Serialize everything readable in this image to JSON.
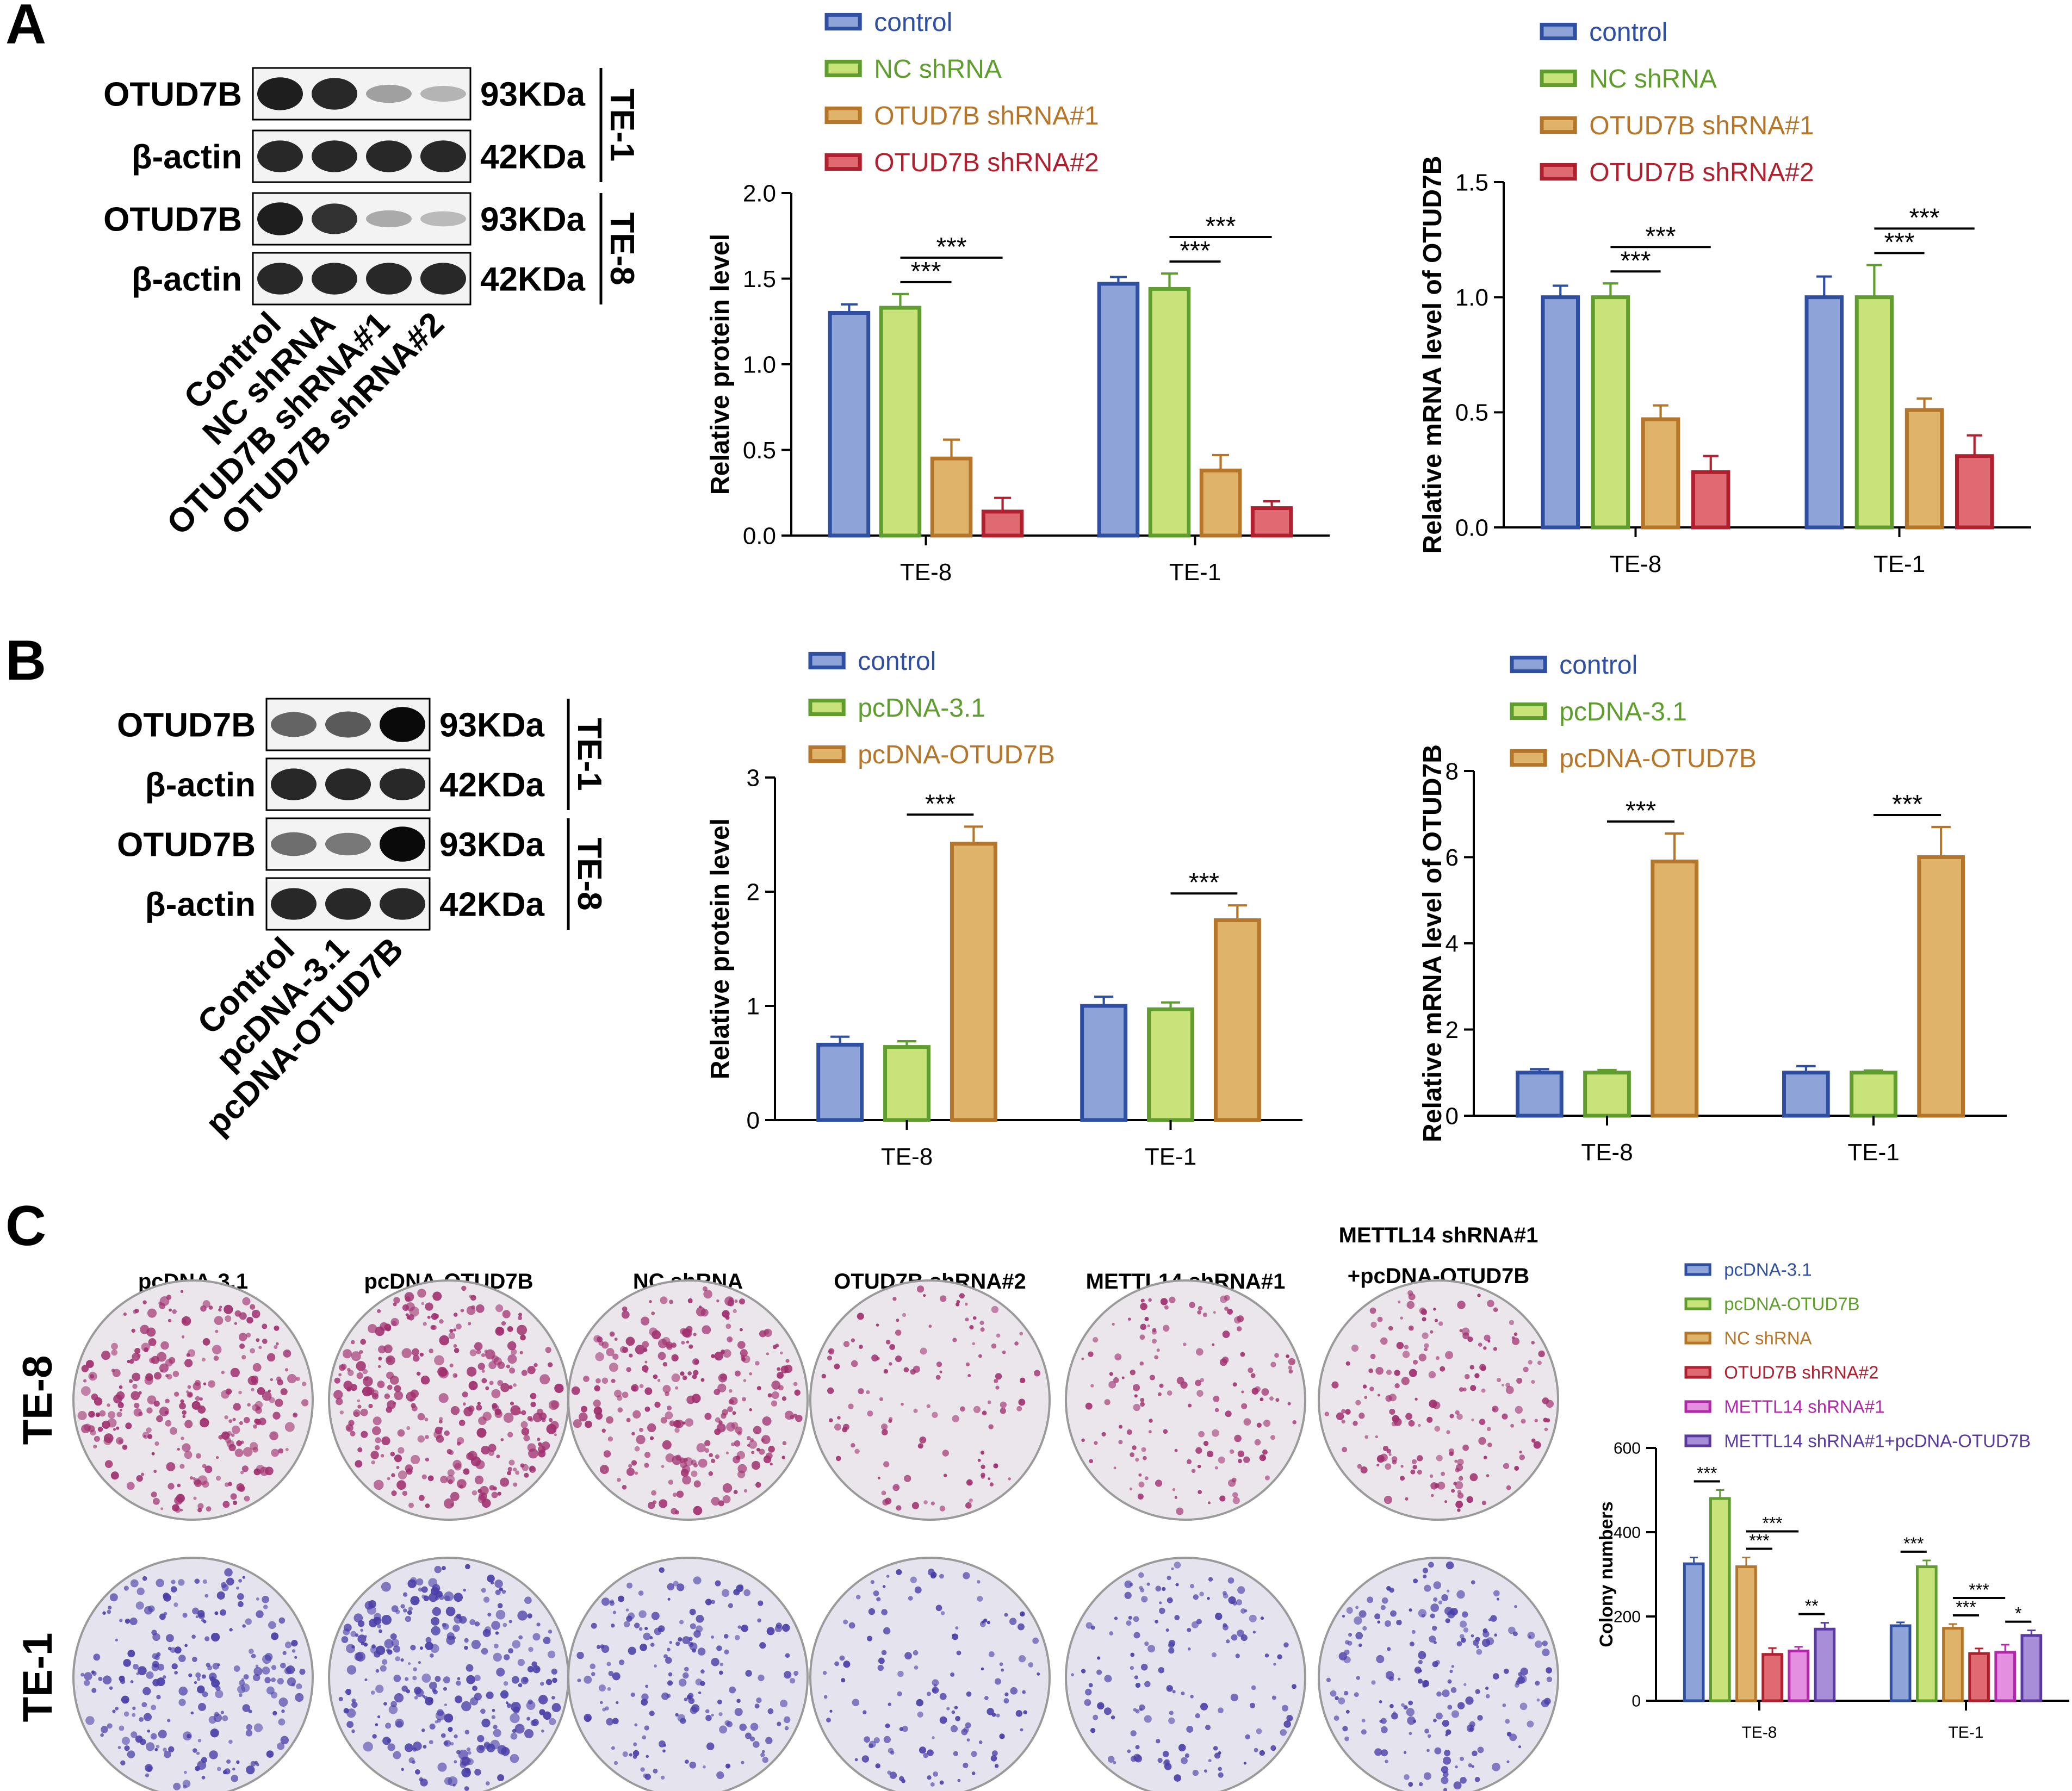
{
  "panels": [
    {
      "letter": "A"
    },
    {
      "letter": "B"
    },
    {
      "letter": "C"
    }
  ],
  "colors": {
    "control": {
      "fill": "#8ea4d8",
      "stroke": "#2f4fa3"
    },
    "nc": {
      "fill": "#c8e37a",
      "stroke": "#5f9e2e"
    },
    "sh1": {
      "fill": "#e0b36a",
      "stroke": "#b5762a"
    },
    "sh2": {
      "fill": "#e06a72",
      "stroke": "#b0202e"
    },
    "mettl": {
      "fill": "#e48fe0",
      "stroke": "#b02aa8"
    },
    "combo": {
      "fill": "#a88ed8",
      "stroke": "#5a3aa0"
    },
    "text_control": "#2f4fa3",
    "text_nc": "#5f9e2e",
    "text_sh1": "#b5762a",
    "text_sh2": "#b0202e",
    "text_mettl": "#b02aa8",
    "text_combo": "#5a3aa0",
    "dish_te8": "#a0306e",
    "dish_te1": "#4a3fa8"
  },
  "blots": [
    {
      "rows": [
        {
          "protein": "OTUD7B",
          "size": "93KDa",
          "intensities": [
            0.9,
            0.85,
            0.25,
            0.15
          ]
        },
        {
          "protein": "β-actin",
          "size": "42KDa",
          "intensities": [
            0.85,
            0.85,
            0.85,
            0.85
          ]
        },
        {
          "protein": "OTUD7B",
          "size": "93KDa",
          "intensities": [
            0.9,
            0.8,
            0.2,
            0.12
          ]
        },
        {
          "protein": "β-actin",
          "size": "42KDa",
          "intensities": [
            0.85,
            0.85,
            0.85,
            0.85
          ]
        }
      ],
      "cell_lines": [
        "TE-1",
        "TE-8"
      ],
      "lanes": [
        "Control",
        "NC shRNA",
        "OTUD7B shRNA#1",
        "OTUD7B shRNA#2"
      ]
    },
    {
      "rows": [
        {
          "protein": "OTUD7B",
          "size": "93KDa",
          "intensities": [
            0.55,
            0.6,
            1.0
          ]
        },
        {
          "protein": "β-actin",
          "size": "42KDa",
          "intensities": [
            0.85,
            0.85,
            0.85
          ]
        },
        {
          "protein": "OTUD7B",
          "size": "93KDa",
          "intensities": [
            0.5,
            0.45,
            1.0
          ]
        },
        {
          "protein": "β-actin",
          "size": "42KDa",
          "intensities": [
            0.85,
            0.85,
            0.85
          ]
        }
      ],
      "cell_lines": [
        "TE-1",
        "TE-8"
      ],
      "lanes": [
        "Control",
        "pcDNA-3.1",
        "pcDNA-OTUD7B"
      ]
    }
  ],
  "chart_data": [
    {
      "type": "bar",
      "ylabel": "Relative protein level",
      "categories": [
        "TE-8",
        "TE-1"
      ],
      "ylim": [
        0,
        2.0
      ],
      "yticks": [
        "0.0",
        "0.5",
        "1.0",
        "1.5",
        "2.0"
      ],
      "series": [
        {
          "name": "control",
          "color": "control",
          "values": [
            1.3,
            1.47
          ],
          "errors": [
            0.05,
            0.04
          ]
        },
        {
          "name": "NC shRNA",
          "color": "nc",
          "values": [
            1.33,
            1.44
          ],
          "errors": [
            0.08,
            0.09
          ]
        },
        {
          "name": "OTUD7B shRNA#1",
          "color": "sh1",
          "values": [
            0.45,
            0.38
          ],
          "errors": [
            0.11,
            0.09
          ]
        },
        {
          "name": "OTUD7B shRNA#2",
          "color": "sh2",
          "values": [
            0.14,
            0.16
          ],
          "errors": [
            0.08,
            0.04
          ]
        }
      ],
      "significance": [
        {
          "group": 0,
          "from": 1,
          "to": 2,
          "label": "***"
        },
        {
          "group": 0,
          "from": 1,
          "to": 3,
          "label": "***"
        },
        {
          "group": 1,
          "from": 1,
          "to": 2,
          "label": "***"
        },
        {
          "group": 1,
          "from": 1,
          "to": 3,
          "label": "***"
        }
      ]
    },
    {
      "type": "bar",
      "ylabel": "Relative mRNA level of OTUD7B",
      "categories": [
        "TE-8",
        "TE-1"
      ],
      "ylim": [
        0,
        1.5
      ],
      "yticks": [
        "0.0",
        "0.5",
        "1.0",
        "1.5"
      ],
      "series": [
        {
          "name": "control",
          "color": "control",
          "values": [
            1.0,
            1.0
          ],
          "errors": [
            0.05,
            0.09
          ]
        },
        {
          "name": "NC shRNA",
          "color": "nc",
          "values": [
            1.0,
            1.0
          ],
          "errors": [
            0.06,
            0.14
          ]
        },
        {
          "name": "OTUD7B shRNA#1",
          "color": "sh1",
          "values": [
            0.47,
            0.51
          ],
          "errors": [
            0.06,
            0.05
          ]
        },
        {
          "name": "OTUD7B shRNA#2",
          "color": "sh2",
          "values": [
            0.24,
            0.31
          ],
          "errors": [
            0.07,
            0.09
          ]
        }
      ],
      "significance": [
        {
          "group": 0,
          "from": 1,
          "to": 2,
          "label": "***"
        },
        {
          "group": 0,
          "from": 1,
          "to": 3,
          "label": "***"
        },
        {
          "group": 1,
          "from": 1,
          "to": 2,
          "label": "***"
        },
        {
          "group": 1,
          "from": 1,
          "to": 3,
          "label": "***"
        }
      ]
    },
    {
      "type": "bar",
      "ylabel": "Relative protein level",
      "categories": [
        "TE-8",
        "TE-1"
      ],
      "ylim": [
        0,
        3
      ],
      "yticks": [
        "0",
        "1",
        "2",
        "3"
      ],
      "series": [
        {
          "name": "control",
          "color": "control",
          "values": [
            0.66,
            1.0
          ],
          "errors": [
            0.07,
            0.08
          ]
        },
        {
          "name": "pcDNA-3.1",
          "color": "nc",
          "values": [
            0.64,
            0.97
          ],
          "errors": [
            0.05,
            0.06
          ]
        },
        {
          "name": "pcDNA-OTUD7B",
          "color": "sh1",
          "values": [
            2.42,
            1.75
          ],
          "errors": [
            0.15,
            0.13
          ]
        }
      ],
      "significance": [
        {
          "group": 0,
          "from": 1,
          "to": 2,
          "label": "***"
        },
        {
          "group": 1,
          "from": 1,
          "to": 2,
          "label": "***"
        }
      ]
    },
    {
      "type": "bar",
      "ylabel": "Relative mRNA level of OTUD7B",
      "categories": [
        "TE-8",
        "TE-1"
      ],
      "ylim": [
        0,
        8
      ],
      "yticks": [
        "0",
        "2",
        "4",
        "6",
        "8"
      ],
      "series": [
        {
          "name": "control",
          "color": "control",
          "values": [
            1.0,
            1.0
          ],
          "errors": [
            0.08,
            0.15
          ]
        },
        {
          "name": "pcDNA-3.1",
          "color": "nc",
          "values": [
            1.0,
            1.0
          ],
          "errors": [
            0.06,
            0.05
          ]
        },
        {
          "name": "pcDNA-OTUD7B",
          "color": "sh1",
          "values": [
            5.9,
            6.0
          ],
          "errors": [
            0.65,
            0.7
          ]
        }
      ],
      "significance": [
        {
          "group": 0,
          "from": 1,
          "to": 2,
          "label": "***"
        },
        {
          "group": 1,
          "from": 1,
          "to": 2,
          "label": "***"
        }
      ]
    },
    {
      "type": "bar",
      "ylabel": "Colony numbers",
      "categories": [
        "TE-8",
        "TE-1"
      ],
      "ylim": [
        0,
        600
      ],
      "yticks": [
        "0",
        "200",
        "400",
        "600"
      ],
      "series": [
        {
          "name": "pcDNA-3.1",
          "color": "control",
          "values": [
            325,
            178
          ],
          "errors": [
            15,
            8
          ]
        },
        {
          "name": "pcDNA-OTUD7B",
          "color": "nc",
          "values": [
            480,
            318
          ],
          "errors": [
            20,
            15
          ]
        },
        {
          "name": "NC shRNA",
          "color": "sh1",
          "values": [
            318,
            172
          ],
          "errors": [
            22,
            10
          ]
        },
        {
          "name": "OTUD7B shRNA#2",
          "color": "sh2",
          "values": [
            110,
            112
          ],
          "errors": [
            15,
            12
          ]
        },
        {
          "name": "METTL14 shRNA#1",
          "color": "mettl",
          "values": [
            118,
            115
          ],
          "errors": [
            10,
            18
          ]
        },
        {
          "name": "METTL14 shRNA#1+pcDNA-OTUD7B",
          "color": "combo",
          "values": [
            170,
            155
          ],
          "errors": [
            15,
            12
          ]
        }
      ],
      "significance": [
        {
          "group": 0,
          "from": 0,
          "to": 1,
          "label": "***"
        },
        {
          "group": 0,
          "from": 2,
          "to": 3,
          "label": "***"
        },
        {
          "group": 0,
          "from": 2,
          "to": 4,
          "label": "***"
        },
        {
          "group": 0,
          "from": 4,
          "to": 5,
          "label": "**"
        },
        {
          "group": 1,
          "from": 0,
          "to": 1,
          "label": "***"
        },
        {
          "group": 1,
          "from": 2,
          "to": 3,
          "label": "***"
        },
        {
          "group": 1,
          "from": 2,
          "to": 4,
          "label": "***"
        },
        {
          "group": 1,
          "from": 4,
          "to": 5,
          "label": "*"
        }
      ]
    }
  ],
  "colony": {
    "columns": [
      {
        "lines": [
          "pcDNA-3.1"
        ],
        "densities": [
          0.9,
          0.75
        ]
      },
      {
        "lines": [
          "pcDNA-OTUD7B"
        ],
        "densities": [
          1.0,
          0.95
        ]
      },
      {
        "lines": [
          "NC shRNA"
        ],
        "densities": [
          0.85,
          0.55
        ]
      },
      {
        "lines": [
          "OTUD7B shRNA#2"
        ],
        "densities": [
          0.3,
          0.35
        ]
      },
      {
        "lines": [
          "METTL14 shRNA#1"
        ],
        "densities": [
          0.4,
          0.4
        ]
      },
      {
        "lines": [
          "METTL14 shRNA#1",
          "+pcDNA-OTUD7B"
        ],
        "densities": [
          0.55,
          0.6
        ]
      }
    ],
    "rows": [
      "TE-8",
      "TE-1"
    ]
  }
}
